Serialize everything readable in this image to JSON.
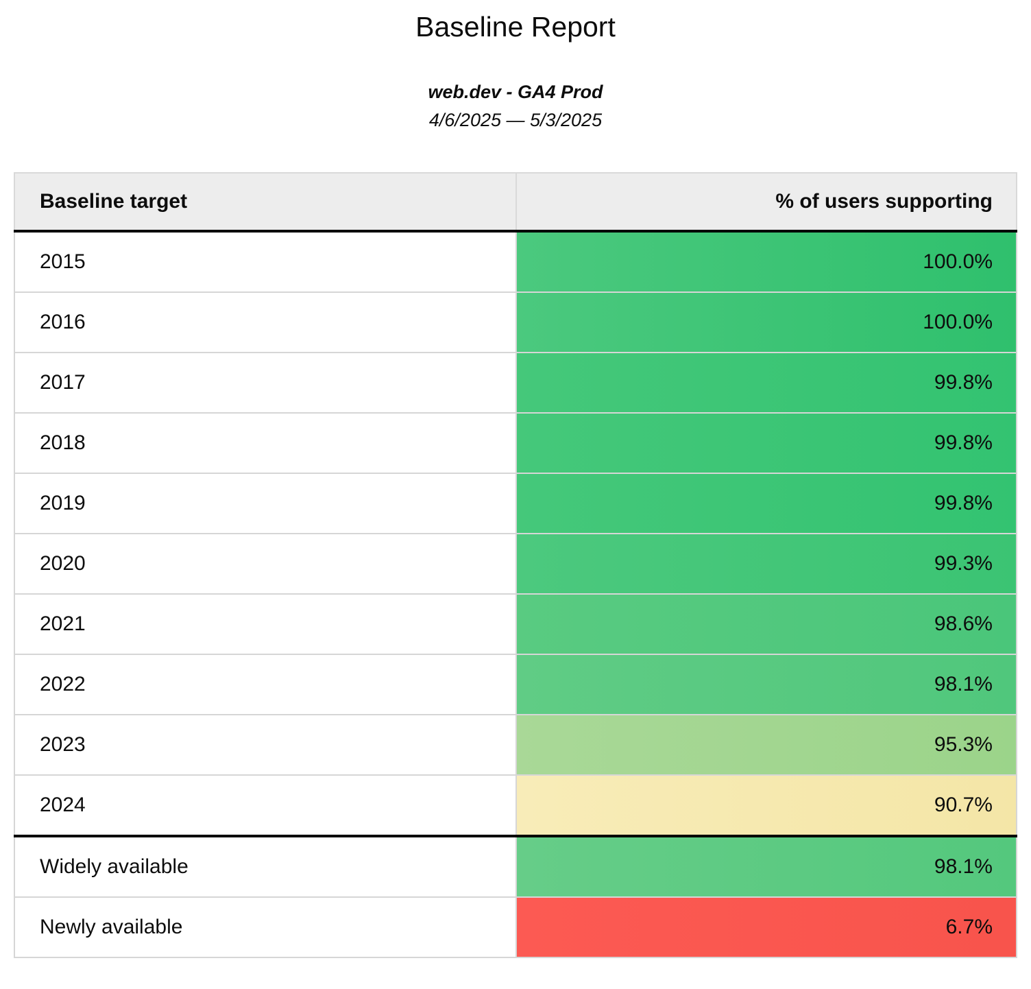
{
  "header": {
    "title": "Baseline Report",
    "subtitle": "web.dev - GA4 Prod",
    "date_range": "4/6/2025 — 5/3/2025"
  },
  "table": {
    "columns": [
      "Baseline target",
      "% of users supporting"
    ],
    "rows": [
      {
        "label": "2015",
        "value": "100.0%",
        "group": "year",
        "color_left": "#4bc97e",
        "color_right": "#2fc06d"
      },
      {
        "label": "2016",
        "value": "100.0%",
        "group": "year",
        "color_left": "#4bc97e",
        "color_right": "#2fc06d"
      },
      {
        "label": "2017",
        "value": "99.8%",
        "group": "year",
        "color_left": "#45c87a",
        "color_right": "#33c371"
      },
      {
        "label": "2018",
        "value": "99.8%",
        "group": "year",
        "color_left": "#45c87a",
        "color_right": "#33c371"
      },
      {
        "label": "2019",
        "value": "99.8%",
        "group": "year",
        "color_left": "#45c87a",
        "color_right": "#33c371"
      },
      {
        "label": "2020",
        "value": "99.3%",
        "group": "year",
        "color_left": "#4cc97e",
        "color_right": "#3bc473"
      },
      {
        "label": "2021",
        "value": "98.6%",
        "group": "year",
        "color_left": "#59cb81",
        "color_right": "#4ac67a"
      },
      {
        "label": "2022",
        "value": "98.1%",
        "group": "year",
        "color_left": "#60cc85",
        "color_right": "#50c77c"
      },
      {
        "label": "2023",
        "value": "95.3%",
        "group": "year",
        "color_left": "#a9d897",
        "color_right": "#9bd48a"
      },
      {
        "label": "2024",
        "value": "90.7%",
        "group": "year",
        "color_left": "#f8ecb8",
        "color_right": "#f4e6a7"
      },
      {
        "label": "Widely available",
        "value": "98.1%",
        "group": "summary",
        "color_left": "#66cd88",
        "color_right": "#54c87d"
      },
      {
        "label": "Newly available",
        "value": "6.7%",
        "group": "summary",
        "color_left": "#fc5a53",
        "color_right": "#f8544c"
      }
    ],
    "colors": {
      "header_bg": "#ededed",
      "row_border": "#d6d6d6",
      "section_divider": "#000000"
    }
  }
}
